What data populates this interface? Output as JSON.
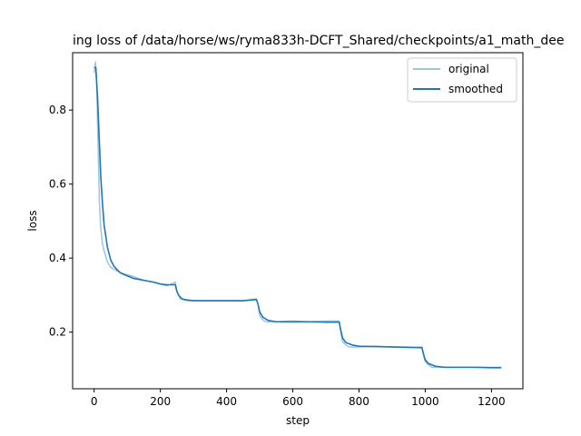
{
  "chart_data": {
    "type": "line",
    "title": "ing loss of /data/horse/ws/ryma833h-DCFT_Shared/checkpoints/a1_math_dee",
    "xlabel": "step",
    "ylabel": "loss",
    "xlim": [
      -65,
      1295
    ],
    "ylim": [
      0.047,
      0.955
    ],
    "x_ticks": [
      0,
      200,
      400,
      600,
      800,
      1000,
      1200
    ],
    "y_ticks": [
      0.2,
      0.4,
      0.6,
      0.8
    ],
    "y_tick_labels": [
      "0.2",
      "0.4",
      "0.6",
      "0.8"
    ],
    "legend_placement": "top-right",
    "grid": false,
    "series": [
      {
        "name": "original",
        "color": "#9ec4e0",
        "x": [
          0,
          4,
          8,
          12,
          16,
          20,
          25,
          30,
          40,
          50,
          60,
          80,
          100,
          120,
          150,
          180,
          200,
          220,
          245,
          250,
          260,
          280,
          300,
          350,
          400,
          450,
          490,
          495,
          500,
          510,
          520,
          550,
          600,
          650,
          700,
          740,
          745,
          750,
          760,
          770,
          800,
          850,
          900,
          950,
          990,
          995,
          1000,
          1010,
          1020,
          1050,
          1100,
          1150,
          1200,
          1230
        ],
        "y": [
          0.9,
          0.93,
          0.86,
          0.7,
          0.55,
          0.48,
          0.44,
          0.42,
          0.39,
          0.375,
          0.37,
          0.36,
          0.355,
          0.35,
          0.34,
          0.335,
          0.33,
          0.325,
          0.335,
          0.31,
          0.29,
          0.285,
          0.285,
          0.285,
          0.285,
          0.285,
          0.29,
          0.275,
          0.245,
          0.232,
          0.228,
          0.228,
          0.23,
          0.228,
          0.23,
          0.23,
          0.2,
          0.175,
          0.165,
          0.16,
          0.16,
          0.162,
          0.16,
          0.158,
          0.16,
          0.14,
          0.12,
          0.112,
          0.105,
          0.105,
          0.105,
          0.105,
          0.105,
          0.105
        ]
      },
      {
        "name": "smoothed",
        "color": "#1f77b4",
        "x": [
          0,
          5,
          10,
          15,
          20,
          25,
          30,
          40,
          50,
          60,
          70,
          80,
          100,
          120,
          150,
          180,
          200,
          220,
          245,
          250,
          255,
          265,
          280,
          300,
          350,
          400,
          450,
          490,
          495,
          500,
          510,
          525,
          550,
          600,
          650,
          700,
          740,
          745,
          750,
          760,
          780,
          800,
          850,
          900,
          950,
          990,
          995,
          1000,
          1010,
          1030,
          1060,
          1100,
          1150,
          1200,
          1230
        ],
        "y": [
          0.915,
          0.915,
          0.84,
          0.73,
          0.62,
          0.55,
          0.49,
          0.43,
          0.395,
          0.378,
          0.368,
          0.36,
          0.352,
          0.345,
          0.34,
          0.335,
          0.33,
          0.328,
          0.328,
          0.31,
          0.3,
          0.29,
          0.287,
          0.285,
          0.285,
          0.285,
          0.285,
          0.288,
          0.275,
          0.255,
          0.24,
          0.232,
          0.228,
          0.228,
          0.228,
          0.227,
          0.227,
          0.205,
          0.185,
          0.172,
          0.165,
          0.162,
          0.161,
          0.16,
          0.159,
          0.158,
          0.14,
          0.125,
          0.115,
          0.108,
          0.105,
          0.105,
          0.105,
          0.104,
          0.104
        ]
      }
    ]
  }
}
